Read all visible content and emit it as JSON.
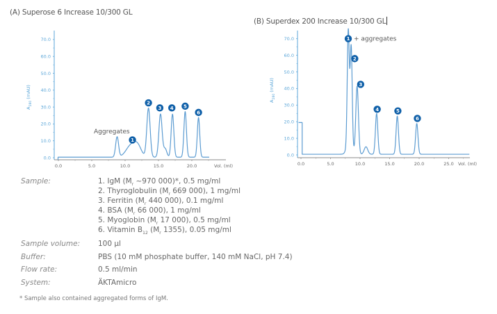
{
  "panels": {
    "a_title": "(A) Superose 6 Increase 10/300 GL",
    "b_title": "(B) Superdex 200 Increase 10/300 GL"
  },
  "colors": {
    "trace": "#5b9bd1",
    "axis": "#5ba6d8",
    "marker": "#0e5fa8",
    "x_axis": "#888888"
  },
  "chart_data": [
    {
      "type": "line",
      "title": "(A) Superose 6 Increase 10/300 GL",
      "xlabel": "Vol. (ml)",
      "ylabel": "A280 (mAU)",
      "xlim": [
        -0.2,
        25.2
      ],
      "ylim": [
        0,
        70
      ],
      "x_ticks": [
        0,
        5,
        10,
        15,
        20
      ],
      "x_tick_labels": [
        "0.0",
        "5.0",
        "10.0",
        "15.0",
        "20.0"
      ],
      "y_ticks": [
        0,
        10,
        20,
        30,
        40,
        50,
        60,
        70
      ],
      "y_tick_labels": [
        "0.0",
        "10.0",
        "20.0",
        "30.0",
        "40.0",
        "50.0",
        "60.0",
        "70.0"
      ],
      "grid": false,
      "baseline_offset": 0.3,
      "peaks": [
        {
          "label": "Aggregates",
          "x": 8.8,
          "height": 12.0,
          "width": 0.22
        },
        {
          "label": "1",
          "x": 10.9,
          "height": 7.0,
          "width": 0.75
        },
        {
          "label": "1b",
          "x": 11.9,
          "height": 5.5,
          "width": 0.55
        },
        {
          "label": "2",
          "x": 13.5,
          "height": 29.0,
          "width": 0.25
        },
        {
          "label": "3",
          "x": 15.3,
          "height": 25.5,
          "width": 0.24
        },
        {
          "label": "3s",
          "x": 16.0,
          "height": 5.0,
          "width": 0.25
        },
        {
          "label": "4",
          "x": 17.1,
          "height": 25.5,
          "width": 0.2
        },
        {
          "label": "5",
          "x": 19.0,
          "height": 27.0,
          "width": 0.19
        },
        {
          "label": "6",
          "x": 21.0,
          "height": 23.5,
          "width": 0.18
        }
      ],
      "series": [
        {
          "name": "1. IgM",
          "peak_x": 10.9,
          "peak_y": 7.0
        },
        {
          "name": "2. Thyroglobulin",
          "peak_x": 13.5,
          "peak_y": 29.0
        },
        {
          "name": "3. Ferritin",
          "peak_x": 15.3,
          "peak_y": 25.5
        },
        {
          "name": "4. BSA",
          "peak_x": 17.1,
          "peak_y": 25.5
        },
        {
          "name": "5. Myoglobin",
          "peak_x": 19.0,
          "peak_y": 27.0
        },
        {
          "name": "6. Vitamin B12",
          "peak_x": 21.0,
          "peak_y": 23.5
        }
      ],
      "x_end": 22.6,
      "annotations": [
        {
          "text": "Aggregates",
          "x": 8.0,
          "y": 14.5
        },
        {
          "marker": "1",
          "x": 11.1,
          "y": 10.5
        },
        {
          "marker": "2",
          "x": 13.5,
          "y": 32.5
        },
        {
          "marker": "3",
          "x": 15.2,
          "y": 29.5
        },
        {
          "marker": "4",
          "x": 17.0,
          "y": 29.5
        },
        {
          "marker": "5",
          "x": 19.0,
          "y": 30.5
        },
        {
          "marker": "6",
          "x": 21.0,
          "y": 26.8
        }
      ]
    },
    {
      "type": "line",
      "title": "(B) Superdex 200 Increase 10/300 GL",
      "xlabel": "Vol. (ml)",
      "ylabel": "A280 (mAU)",
      "xlim": [
        -0.5,
        30.0
      ],
      "ylim": [
        0,
        70
      ],
      "x_ticks": [
        0,
        5,
        10,
        15,
        20,
        25
      ],
      "x_tick_labels": [
        "0.0",
        "5.0",
        "10.0",
        "15.0",
        "20.0",
        "25.0"
      ],
      "y_ticks": [
        0,
        10,
        20,
        30,
        40,
        50,
        60,
        70
      ],
      "y_tick_labels": [
        "0.0",
        "10.0",
        "20.0",
        "30.0",
        "40.0",
        "50.0",
        "60.0",
        "70.0"
      ],
      "grid": false,
      "baseline_offset": 0.4,
      "start_step": {
        "x0": -0.4,
        "x1": 0.2,
        "y": 19.5
      },
      "peaks": [
        {
          "label": "1",
          "x": 8.0,
          "height": 66.0,
          "width": 0.17
        },
        {
          "label": "2",
          "x": 8.5,
          "height": 57.5,
          "width": 0.17
        },
        {
          "label": "shoulder",
          "x": 8.2,
          "height": 10.0,
          "width": 0.4
        },
        {
          "label": "3",
          "x": 9.5,
          "height": 41.0,
          "width": 0.22
        },
        {
          "label": "bump",
          "x": 11.0,
          "height": 4.5,
          "width": 0.3
        },
        {
          "label": "4",
          "x": 12.8,
          "height": 24.5,
          "width": 0.2
        },
        {
          "label": "5",
          "x": 16.3,
          "height": 23.0,
          "width": 0.2
        },
        {
          "label": "6",
          "x": 19.6,
          "height": 18.5,
          "width": 0.2
        }
      ],
      "series": [
        {
          "name": "1. IgM + aggregates",
          "peak_x": 8.0,
          "peak_y": 66.0
        },
        {
          "name": "2. Thyroglobulin",
          "peak_x": 8.5,
          "peak_y": 57.5
        },
        {
          "name": "3. Ferritin",
          "peak_x": 9.5,
          "peak_y": 41.0
        },
        {
          "name": "4. BSA",
          "peak_x": 12.8,
          "peak_y": 24.5
        },
        {
          "name": "5. Myoglobin",
          "peak_x": 16.3,
          "peak_y": 23.0
        },
        {
          "name": "6. Vitamin B12",
          "peak_x": 19.6,
          "peak_y": 18.5
        }
      ],
      "x_end": 28.5,
      "annotations": [
        {
          "marker": "1",
          "x": 8.0,
          "y": 70.0,
          "text": "+ aggregates"
        },
        {
          "marker": "2",
          "x": 9.1,
          "y": 58.0
        },
        {
          "marker": "3",
          "x": 10.1,
          "y": 42.5
        },
        {
          "marker": "4",
          "x": 12.9,
          "y": 27.5
        },
        {
          "marker": "5",
          "x": 16.4,
          "y": 26.5
        },
        {
          "marker": "6",
          "x": 19.7,
          "y": 22.0
        }
      ]
    }
  ],
  "info": {
    "sample_label": "Sample:",
    "sample_lines": [
      "1. IgM (M",
      "2. Thyroglobulin (M",
      "3. Ferritin (M",
      "4. BSA (M",
      "5. Myoglobin (M",
      "6. Vitamin B"
    ],
    "samples": [
      {
        "pre": "1. IgM (M",
        "sub": "r",
        "post": " ~970 000)*, 0.5 mg/ml"
      },
      {
        "pre": "2. Thyroglobulin (M",
        "sub": "r",
        "post": " 669 000), 1 mg/ml"
      },
      {
        "pre": "3. Ferritin (M",
        "sub": "r",
        "post": " 440 000), 0.1 mg/ml"
      },
      {
        "pre": "4. BSA (M",
        "sub": "r",
        "post": " 66 000), 1 mg/ml"
      },
      {
        "pre": "5. Myoglobin (M",
        "sub": "r",
        "post": " 17 000), 0.5 mg/ml"
      },
      {
        "pre": "6. Vitamin B",
        "sub": "12",
        "mid": " (M",
        "sub2": "r",
        "post": " 1355), 0.05 mg/ml"
      }
    ],
    "sample_volume_label": "Sample volume:",
    "sample_volume": "100 µl",
    "buffer_label": "Buffer:",
    "buffer": "PBS (10 mM phosphate buffer, 140 mM NaCl, pH 7.4)",
    "flow_rate_label": "Flow rate:",
    "flow_rate": "0.5 ml/min",
    "system_label": "System:",
    "system": "ÄKTAmicro",
    "footnote": "* Sample also contained aggregated forms of IgM."
  }
}
